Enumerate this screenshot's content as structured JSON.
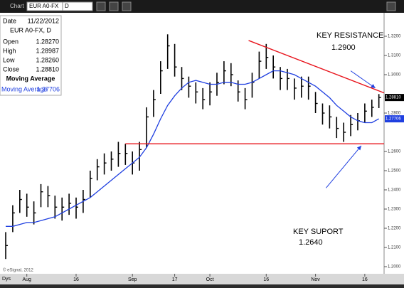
{
  "window": {
    "title": "Chart",
    "symbol": "EUR A0-FX",
    "interval": "D"
  },
  "info": {
    "date_label": "Date",
    "date": "11/22/2012",
    "symbol": "EUR A0-FX, D",
    "open_label": "Open",
    "open": "1.28270",
    "high_label": "High",
    "high": "1.28987",
    "low_label": "Low",
    "low": "1.28260",
    "close_label": "Close",
    "close": "1.28810",
    "study_title": "Moving Average",
    "study_label": "Moving Average",
    "study_value": "1.27706"
  },
  "footer": {
    "copyright": "© eSignal, 2012",
    "period": "Dys"
  },
  "chart_data": {
    "type": "ohlc",
    "ylim": [
      1.1963,
      1.33222
    ],
    "yticks": [
      {
        "value": 1.2,
        "label": "1.2000"
      },
      {
        "value": 1.21,
        "label": "1.2100"
      },
      {
        "value": 1.22,
        "label": "1.2200"
      },
      {
        "value": 1.23,
        "label": "1.2300"
      },
      {
        "value": 1.24,
        "label": "1.2400"
      },
      {
        "value": 1.25,
        "label": "1.2500"
      },
      {
        "value": 1.26,
        "label": "1.2600"
      },
      {
        "value": 1.28,
        "label": "1.2800"
      },
      {
        "value": 1.3,
        "label": "1.3000"
      },
      {
        "value": 1.31,
        "label": "1.3100"
      },
      {
        "value": 1.32,
        "label": "1.3200"
      }
    ],
    "xlim": [
      -0.81,
      53.74
    ],
    "xticks": [
      {
        "value": 3,
        "label": "Aug"
      },
      {
        "value": 10,
        "label": "16"
      },
      {
        "value": 18,
        "label": "Sep"
      },
      {
        "value": 24,
        "label": "17"
      },
      {
        "value": 29,
        "label": "Oct"
      },
      {
        "value": 37,
        "label": "16"
      },
      {
        "value": 44,
        "label": "Nov"
      },
      {
        "value": 51,
        "label": "16"
      }
    ],
    "high": [
      1.218,
      1.232,
      1.24,
      1.238,
      1.234,
      1.243,
      1.242,
      1.237,
      1.236,
      1.238,
      1.236,
      1.24,
      1.25,
      1.256,
      1.259,
      1.26,
      1.265,
      1.264,
      1.26,
      1.265,
      1.283,
      1.292,
      1.307,
      1.321,
      1.316,
      1.304,
      1.299,
      1.296,
      1.293,
      1.296,
      1.301,
      1.307,
      1.306,
      1.297,
      1.293,
      1.301,
      1.312,
      1.316,
      1.31,
      1.304,
      1.303,
      1.298,
      1.299,
      1.299,
      1.291,
      1.285,
      1.284,
      1.278,
      1.275,
      1.279,
      1.28,
      1.285,
      1.287,
      1.2899
    ],
    "low": [
      1.204,
      1.218,
      1.228,
      1.226,
      1.222,
      1.231,
      1.231,
      1.225,
      1.224,
      1.227,
      1.225,
      1.228,
      1.236,
      1.245,
      1.248,
      1.25,
      1.252,
      1.253,
      1.248,
      1.25,
      1.262,
      1.278,
      1.29,
      1.303,
      1.299,
      1.292,
      1.288,
      1.285,
      1.282,
      1.284,
      1.289,
      1.295,
      1.294,
      1.286,
      1.282,
      1.288,
      1.298,
      1.303,
      1.298,
      1.292,
      1.292,
      1.287,
      1.288,
      1.287,
      1.28,
      1.274,
      1.272,
      1.267,
      1.265,
      1.268,
      1.271,
      1.275,
      1.278,
      1.2826
    ],
    "close": [
      1.211,
      1.228,
      1.235,
      1.231,
      1.228,
      1.239,
      1.237,
      1.231,
      1.231,
      1.233,
      1.231,
      1.235,
      1.246,
      1.252,
      1.254,
      1.256,
      1.259,
      1.259,
      1.254,
      1.261,
      1.278,
      1.287,
      1.302,
      1.315,
      1.304,
      1.298,
      1.294,
      1.291,
      1.287,
      1.291,
      1.296,
      1.302,
      1.3,
      1.291,
      1.287,
      1.296,
      1.307,
      1.309,
      1.304,
      1.298,
      1.298,
      1.293,
      1.294,
      1.294,
      1.285,
      1.28,
      1.278,
      1.272,
      1.27,
      1.274,
      1.276,
      1.281,
      1.283,
      1.2881
    ],
    "bar_color": "#000000",
    "moving_average": {
      "color": "#1f3fe0",
      "values": [
        1.221,
        1.221,
        1.222,
        1.223,
        1.223,
        1.224,
        1.225,
        1.226,
        1.228,
        1.23,
        1.232,
        1.234,
        1.236,
        1.239,
        1.242,
        1.245,
        1.248,
        1.251,
        1.254,
        1.257,
        1.262,
        1.269,
        1.277,
        1.284,
        1.289,
        1.293,
        1.296,
        1.297,
        1.296,
        1.295,
        1.295,
        1.296,
        1.296,
        1.295,
        1.295,
        1.296,
        1.298,
        1.3,
        1.302,
        1.302,
        1.301,
        1.3,
        1.298,
        1.296,
        1.294,
        1.291,
        1.288,
        1.284,
        1.281,
        1.278,
        1.276,
        1.275,
        1.275,
        1.277
      ]
    },
    "trendlines": [
      {
        "color": "#e8141c",
        "x": [
          34.5,
          53.74
        ],
        "y": [
          1.3178,
          1.2905
        ]
      },
      {
        "color": "#e8141c",
        "x": [
          17,
          53.74
        ],
        "y": [
          1.264,
          1.264
        ]
      }
    ],
    "annotations": [
      {
        "text": "KEY RESISTANCE",
        "value": "1.2900",
        "color": "#000000",
        "arrow_from": [
          49,
          1.302
        ],
        "arrow_to": [
          52.5,
          1.293
        ]
      },
      {
        "text": "KEY SUPORT",
        "value": "1.2640",
        "color": "#000000",
        "arrow_from": [
          45.5,
          1.241
        ],
        "arrow_to": [
          50.5,
          1.263
        ]
      }
    ]
  }
}
